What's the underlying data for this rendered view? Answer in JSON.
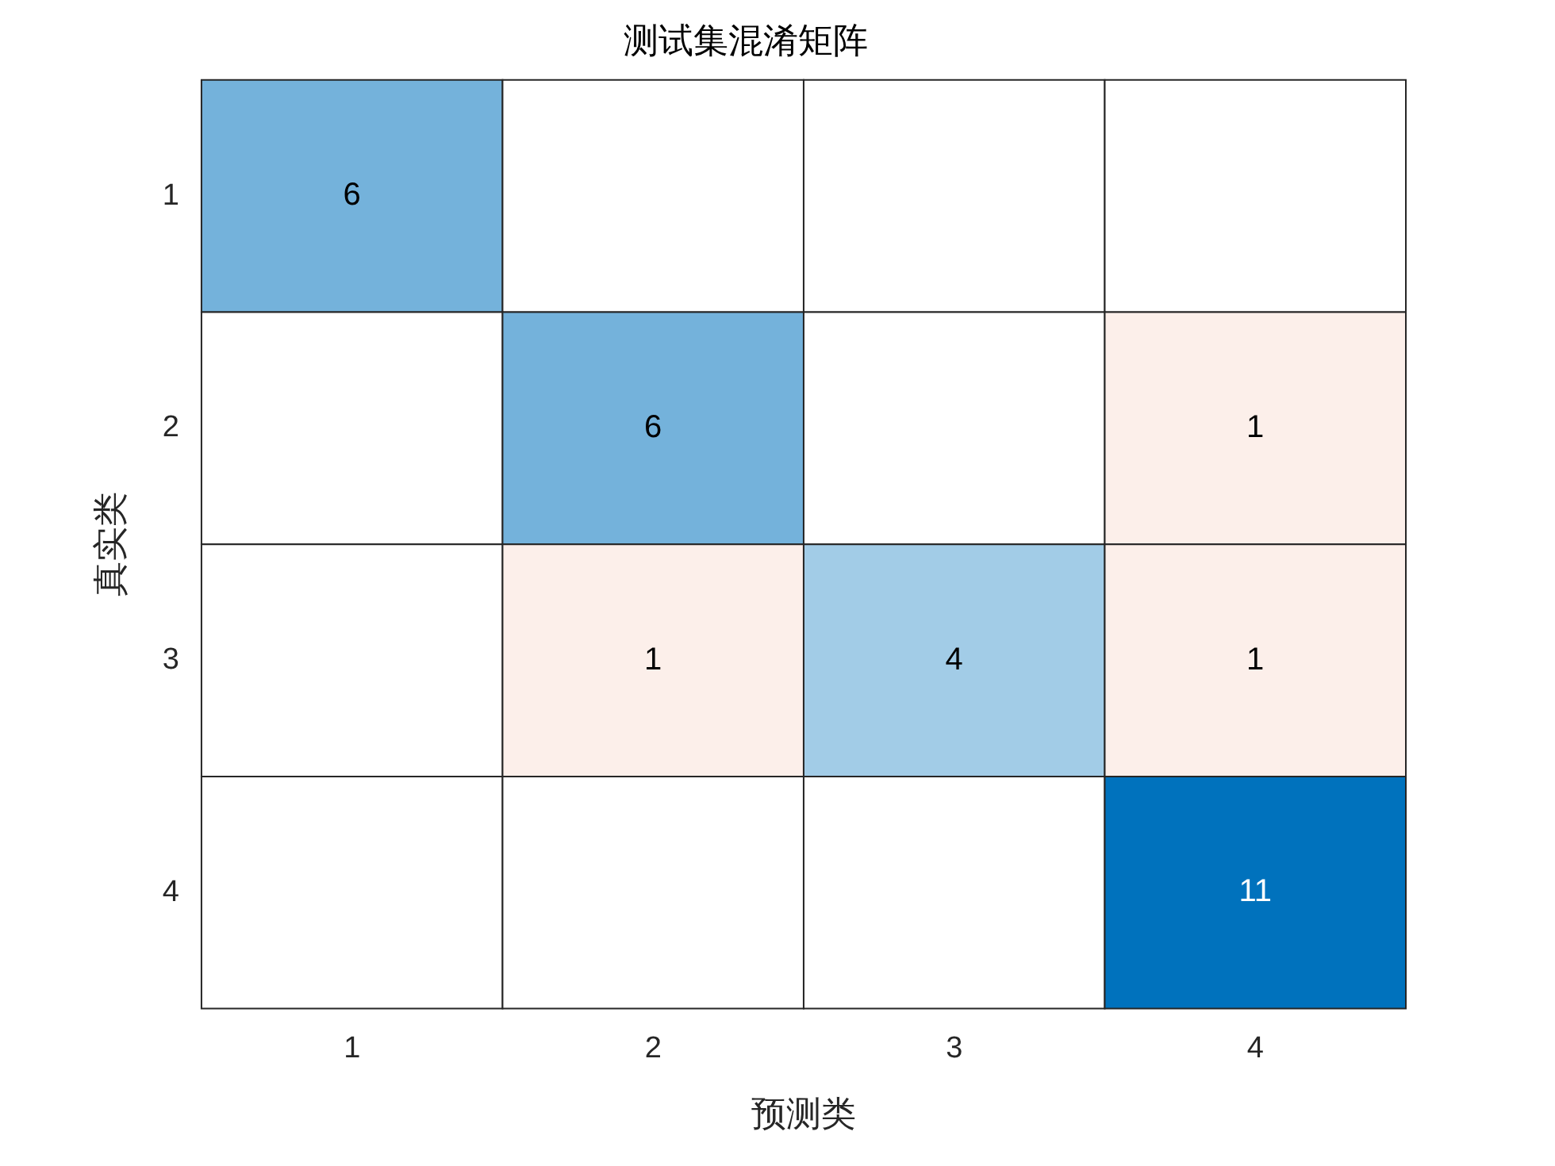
{
  "chart_data": {
    "type": "heatmap",
    "title": "测试集混淆矩阵",
    "xlabel": "预测类",
    "ylabel": "真实类",
    "categories": [
      "1",
      "2",
      "3",
      "4"
    ],
    "y_categories": [
      "1",
      "2",
      "3",
      "4"
    ],
    "data_labels": true,
    "cells": [
      [
        6,
        null,
        null,
        null
      ],
      [
        null,
        6,
        null,
        1
      ],
      [
        null,
        1,
        4,
        1
      ],
      [
        null,
        null,
        null,
        11
      ]
    ]
  }
}
